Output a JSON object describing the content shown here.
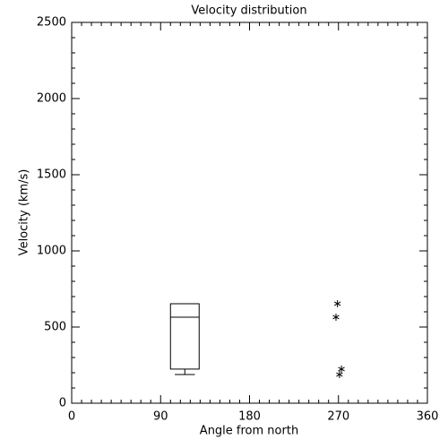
{
  "chart_data": {
    "type": "box",
    "title": "Velocity distribution",
    "x_label": "Angle from north",
    "y_label": "Velocity (km/s)",
    "xlim": [
      0,
      360
    ],
    "xticks": [
      0,
      90,
      180,
      270,
      360
    ],
    "ylim": [
      0,
      2500
    ],
    "yticks": [
      0,
      500,
      1000,
      1500,
      2000,
      2500
    ],
    "x_minor": 9,
    "y_minor": 5,
    "boxes": [
      {
        "x_left": 100,
        "x_right": 129,
        "min": 188,
        "q1": 224,
        "median": 565,
        "q3": 653
      }
    ],
    "points": {
      "marker": "asterisk",
      "x": [
        269,
        267.5,
        273,
        271
      ],
      "values": [
        653,
        565,
        224,
        188
      ]
    }
  }
}
